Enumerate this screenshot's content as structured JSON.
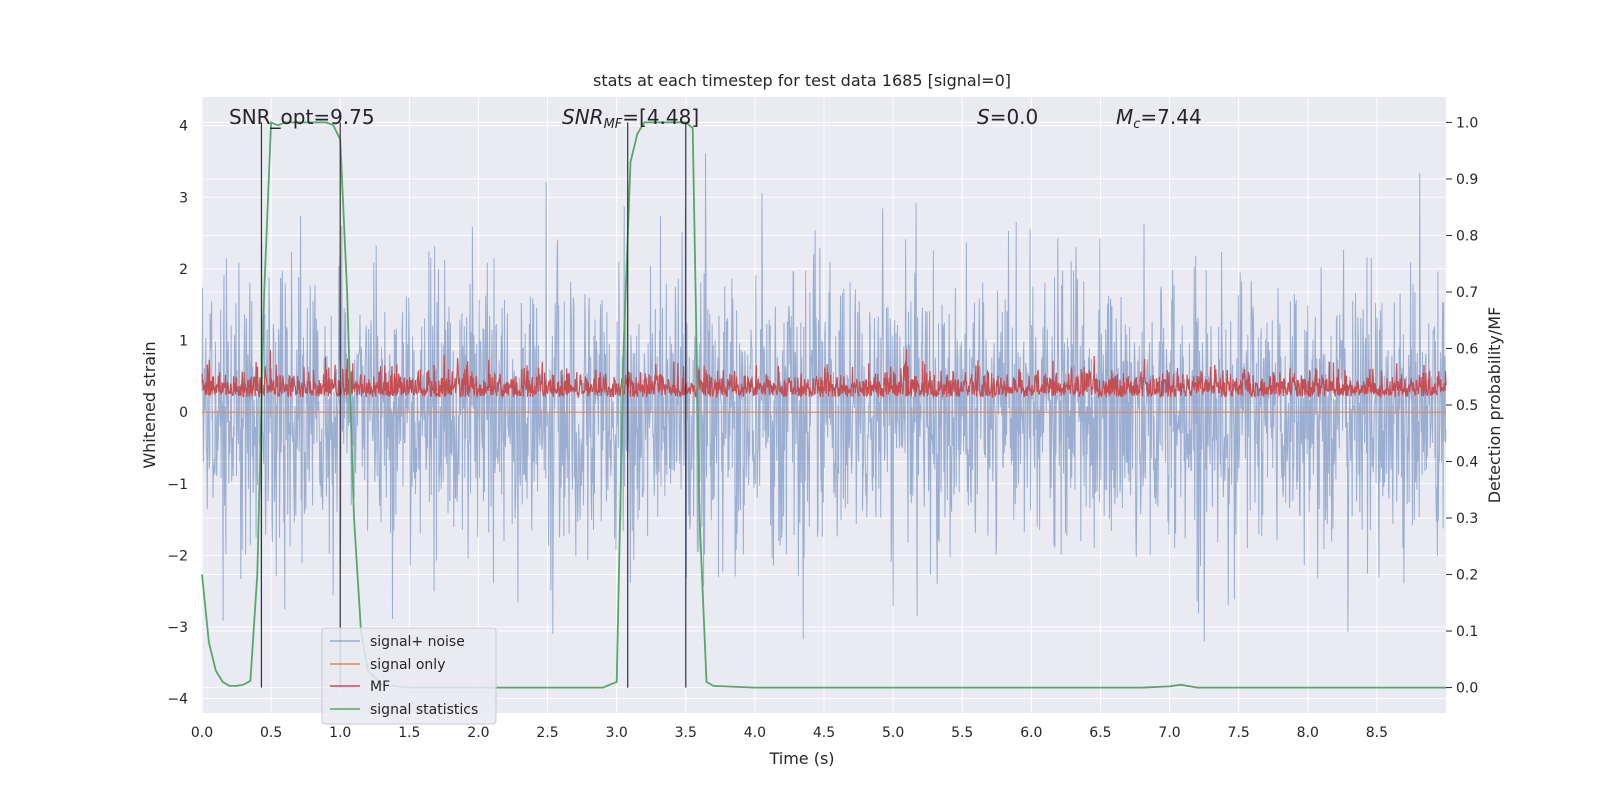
{
  "chart_data": {
    "type": "line",
    "title": "stats at each timestep for test data 1685 [signal=0]",
    "xlabel": "Time (s)",
    "ylabel": "Whitened strain",
    "ylabel_right": "Detection probability/MF",
    "xlim": [
      0.0,
      9.0
    ],
    "ylim": [
      -4.2,
      4.4
    ],
    "ylim_right": [
      -0.045,
      1.045
    ],
    "x_ticks": [
      "0.0",
      "0.5",
      "1.0",
      "1.5",
      "2.0",
      "2.5",
      "3.0",
      "3.5",
      "4.0",
      "4.5",
      "5.0",
      "5.5",
      "6.0",
      "6.5",
      "7.0",
      "7.5",
      "8.0",
      "8.5"
    ],
    "y_ticks": [
      "4",
      "3",
      "2",
      "1",
      "0",
      "−1",
      "−2",
      "−3",
      "−4"
    ],
    "y_ticks_right": [
      "1.0",
      "0.9",
      "0.8",
      "0.7",
      "0.6",
      "0.5",
      "0.4",
      "0.3",
      "0.2",
      "0.1",
      "0.0"
    ],
    "grid": true,
    "legend_position": "lower-left",
    "annotations": {
      "snr_opt": "SNR_opt=9.75",
      "snr_mf_sym": "SNR",
      "snr_mf_sub": "MF",
      "snr_mf_val": "=[4.48]",
      "s_sym": "S",
      "s_val": "=0.0",
      "mc_sym": "M",
      "mc_sub": "c",
      "mc_val": "=7.44"
    },
    "series": [
      {
        "name": "signal+ noise",
        "color": "#4c72b0",
        "alpha": 0.5,
        "noise_std": 0.95,
        "y_axis": "left",
        "note": "dense whitened strain noise trace, roughly ±2.5 with spikes to ±4"
      },
      {
        "name": "signal only",
        "color": "#dd8452",
        "y_axis": "left",
        "x": [
          0.0,
          9.0
        ],
        "y": [
          0.0,
          0.0
        ]
      },
      {
        "name": "MF",
        "color": "#c44e52",
        "y_axis": "right",
        "mean": 0.52,
        "range": [
          0.5,
          0.6
        ]
      },
      {
        "name": "signal statistics",
        "color": "#55a868",
        "y_axis": "right",
        "x": [
          0.0,
          0.05,
          0.1,
          0.15,
          0.2,
          0.25,
          0.3,
          0.35,
          0.4,
          0.45,
          0.5,
          0.55,
          0.6,
          0.7,
          0.8,
          0.9,
          0.95,
          1.0,
          1.05,
          1.1,
          1.15,
          1.2,
          1.3,
          1.5,
          2.0,
          2.5,
          2.9,
          3.0,
          3.05,
          3.1,
          3.15,
          3.2,
          3.3,
          3.4,
          3.5,
          3.55,
          3.6,
          3.65,
          3.7,
          4.0,
          5.0,
          6.0,
          6.8,
          7.0,
          7.08,
          7.2,
          8.0,
          9.0
        ],
        "y": [
          0.2,
          0.08,
          0.03,
          0.01,
          0.003,
          0.003,
          0.005,
          0.012,
          0.2,
          0.7,
          1.0,
          0.995,
          1.0,
          1.0,
          1.0,
          1.0,
          0.995,
          0.97,
          0.7,
          0.3,
          0.1,
          0.03,
          0.005,
          0.0,
          0.0,
          0.0,
          0.0,
          0.01,
          0.6,
          0.93,
          0.98,
          1.0,
          1.0,
          1.0,
          1.0,
          0.99,
          0.3,
          0.01,
          0.003,
          0.0,
          0.0,
          0.0,
          0.0,
          0.002,
          0.005,
          0.0,
          0.0,
          0.0
        ]
      }
    ],
    "vlines": [
      {
        "x": 0.43,
        "y0": 0.0,
        "y1": 1.0,
        "color": "#333333"
      },
      {
        "x": 1.0,
        "y0": 0.0,
        "y1": 1.0,
        "color": "#333333"
      },
      {
        "x": 3.08,
        "y0": 0.0,
        "y1": 1.0,
        "color": "#333333"
      },
      {
        "x": 3.5,
        "y0": 0.0,
        "y1": 1.0,
        "color": "#333333"
      }
    ]
  }
}
